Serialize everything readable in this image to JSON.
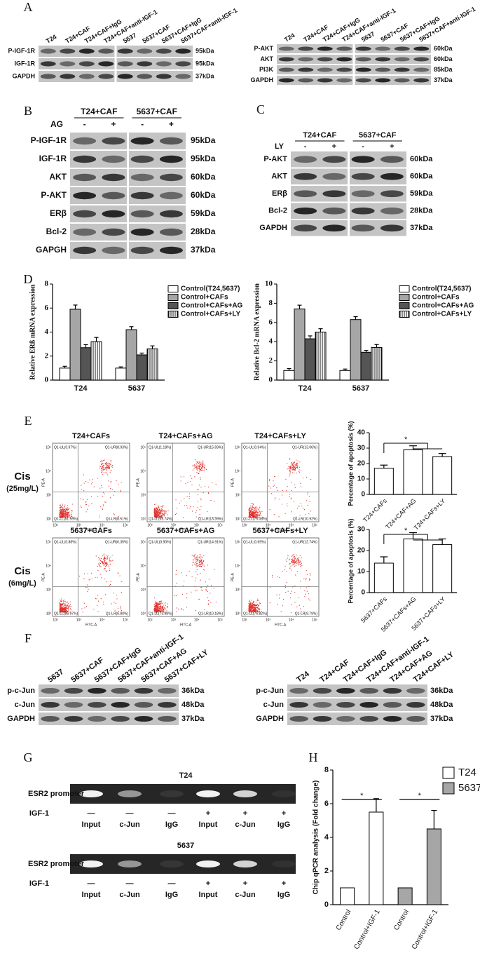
{
  "panel_labels": [
    "A",
    "B",
    "C",
    "D",
    "E",
    "F",
    "G",
    "H"
  ],
  "blots": [
    {
      "lanes": [
        "T24",
        "T24+CAF",
        "T24+CAF+IgG",
        "T24+CAF+anti-IGF-1",
        "5637",
        "5637+CAF",
        "5637+CAF+IgG",
        "5637+CAF+anti-IGF-1"
      ],
      "rows": [
        {
          "label": "P-IGF-1R",
          "kda": "95kDa"
        },
        {
          "label": "IGF-1R",
          "kda": "95kDa"
        },
        {
          "label": "GAPDH",
          "kda": "37kDa"
        }
      ]
    },
    {
      "lanes": [
        "T24",
        "T24+CAF",
        "T24+CAF+IgG",
        "T24+CAF+anti-IGF-1",
        "5637",
        "5637+CAF",
        "5637+CAF+IgG",
        "5637+CAF+anti-IGF-1"
      ],
      "rows": [
        {
          "label": "P-AKT",
          "kda": "60kDa"
        },
        {
          "label": "AKT",
          "kda": "60kDa"
        },
        {
          "label": "PI3K",
          "kda": "85kDa"
        },
        {
          "label": "GAPDH",
          "kda": "37kDa"
        }
      ]
    },
    {
      "groups": [
        "T24+CAF",
        "5637+CAF"
      ],
      "treatment": "AG",
      "signs": [
        "-",
        "+",
        "-",
        "+"
      ],
      "rows": [
        {
          "label": "P-IGF-1R",
          "kda": "95kDa"
        },
        {
          "label": "IGF-1R",
          "kda": "95kDa"
        },
        {
          "label": "AKT",
          "kda": "60kDa"
        },
        {
          "label": "P-AKT",
          "kda": "60kDa"
        },
        {
          "label": "ERβ",
          "kda": "59kDa"
        },
        {
          "label": "Bcl-2",
          "kda": "28kDa"
        },
        {
          "label": "GAPGH",
          "kda": "37kDa"
        }
      ]
    },
    {
      "groups": [
        "T24+CAF",
        "5637+CAF"
      ],
      "treatment": "LY",
      "signs": [
        "-",
        "+",
        "-",
        "+"
      ],
      "rows": [
        {
          "label": "P-AKT",
          "kda": "60kDa"
        },
        {
          "label": "AKT",
          "kda": "60kDa"
        },
        {
          "label": "ERβ",
          "kda": "59kDa"
        },
        {
          "label": "Bcl-2",
          "kda": "28kDa"
        },
        {
          "label": "GAPDH",
          "kda": "37kDa"
        }
      ]
    },
    {
      "lanes": [
        "5637",
        "5637+CAF",
        "5637+CAF+IgG",
        "5637+CAF+anti-IGF-1",
        "5637+CAF+AG",
        "5637+CAF+LY"
      ],
      "rows": [
        {
          "label": "p-c-Jun",
          "kda": "36kDa"
        },
        {
          "label": "c-Jun",
          "kda": "48kDa"
        },
        {
          "label": "GAPDH",
          "kda": "37kDa"
        }
      ]
    },
    {
      "lanes": [
        "T24",
        "T24+CAF",
        "T24+CAF+IgG",
        "T24+CAF+anti-IGF-1",
        "T24+CAF+AG",
        "T24+CAF+LY"
      ],
      "rows": [
        {
          "label": "p-c-Jun",
          "kda": "36kDa"
        },
        {
          "label": "c-Jun",
          "kda": "48kDa"
        },
        {
          "label": "GAPDH",
          "kda": "37kDa"
        }
      ]
    }
  ],
  "flow": {
    "x_label": "FITC-A",
    "y_label": "PE-A",
    "ticks": [
      "10²",
      "10³",
      "10⁴",
      "10⁵"
    ],
    "rows": [
      {
        "condition": "Cis",
        "dose": "(25mg/L)",
        "plots": [
          {
            "title": "T24+CAFs",
            "quadrants": [
              "Q1-UL(0.97%)",
              "Q1-UR(8.93%)",
              "Q1-LL(81.59%)",
              "Q1-LR(8.51%)"
            ]
          },
          {
            "title": "T24+CAFs+AG",
            "quadrants": [
              "Q1-UL(1.18%)",
              "Q1-UR(15.69%)",
              "Q1-LL(69.74%)",
              "Q1-LR(13.39%)"
            ]
          },
          {
            "title": "T24+CAFs+LY",
            "quadrants": [
              "Q1-UL(0.94%)",
              "Q1-UR(13.06%)",
              "Q1-LL(75.08%)",
              "Q1-LR(10.92%)"
            ]
          }
        ]
      },
      {
        "condition": "Cis",
        "dose": "(6mg/L)",
        "plots": [
          {
            "title": "5637+CAFs",
            "quadrants": [
              "Q1-UL(0.88%)",
              "Q1-UR(6.35%)",
              "Q1-LL(85.97%)",
              "Q1-LR(6.80%)"
            ]
          },
          {
            "title": "5637+CAFs+AG",
            "quadrants": [
              "Q1-UL(0.90%)",
              "Q1-UR(14.91%)",
              "Q1-LL(73.98%)",
              "Q1-LR(10.18%)"
            ]
          },
          {
            "title": "5637+CAFs+LY",
            "quadrants": [
              "Q1-UL(0.65%)",
              "Q1-UR(12.74%)",
              "Q1-LL(76.82%)",
              "Q1-LR(9.79%)"
            ]
          }
        ]
      }
    ]
  },
  "gels": [
    {
      "title": "T24",
      "target": "ESR2 promoter",
      "treatment": "IGF-1",
      "signs": [
        "—",
        "—",
        "—",
        "+",
        "+",
        "+"
      ],
      "lanes": [
        "Input",
        "c-Jun",
        "IgG",
        "Input",
        "c-Jun",
        "IgG"
      ]
    },
    {
      "title": "5637",
      "target": "ESR2 promoter",
      "treatment": "IGF-1",
      "signs": [
        "—",
        "—",
        "—",
        "+",
        "+",
        "+"
      ],
      "lanes": [
        "Input",
        "c-Jun",
        "IgG",
        "Input",
        "c-Jun",
        "IgG"
      ]
    }
  ],
  "chart_data": [
    {
      "type": "bar",
      "ylabel": "Relative ERß  mRNA expression",
      "categories": [
        "T24",
        "5637"
      ],
      "series": [
        {
          "name": "Control(T24,5637)",
          "color": "#ffffff",
          "values": [
            1.0,
            1.0
          ],
          "errors": [
            0.15,
            0.1
          ]
        },
        {
          "name": "Control+CAFs",
          "color": "#a6a6a6",
          "values": [
            5.9,
            4.2
          ],
          "errors": [
            0.35,
            0.25
          ]
        },
        {
          "name": "Control+CAFs+AG",
          "color": "#555555",
          "values": [
            2.7,
            2.1
          ],
          "errors": [
            0.25,
            0.15
          ]
        },
        {
          "name": "Control+CAFs+LY",
          "color": "#ffffff",
          "pattern": "vertical-lines",
          "values": [
            3.2,
            2.6
          ],
          "errors": [
            0.35,
            0.25
          ]
        }
      ],
      "ylim": [
        0,
        8
      ],
      "yticks": [
        0,
        2,
        4,
        6,
        8
      ]
    },
    {
      "type": "bar",
      "ylabel": "Relative Bcl-2 mRNA expression",
      "categories": [
        "T24",
        "5637"
      ],
      "series": [
        {
          "name": "Control(T24,5637)",
          "color": "#ffffff",
          "values": [
            1.0,
            1.0
          ],
          "errors": [
            0.2,
            0.15
          ]
        },
        {
          "name": "Control+CAFs",
          "color": "#a6a6a6",
          "values": [
            7.4,
            6.3
          ],
          "errors": [
            0.4,
            0.3
          ]
        },
        {
          "name": "Control+CAFs+AG",
          "color": "#555555",
          "values": [
            4.3,
            2.9
          ],
          "errors": [
            0.3,
            0.2
          ]
        },
        {
          "name": "Control+CAFs+LY",
          "color": "#ffffff",
          "pattern": "vertical-lines",
          "values": [
            5.0,
            3.4
          ],
          "errors": [
            0.35,
            0.3
          ]
        }
      ],
      "ylim": [
        0,
        10
      ],
      "yticks": [
        0,
        2,
        4,
        6,
        8,
        10
      ]
    },
    {
      "type": "bar",
      "ylabel": "Percentage of apoptosis (%)",
      "categories": [
        "T24+CAFs",
        "T24+CAF+AG",
        "T24+CAFs+LY"
      ],
      "series": [
        {
          "color": "#ffffff",
          "values": [
            17,
            29,
            24.5
          ],
          "errors": [
            2,
            2.5,
            2
          ]
        }
      ],
      "ylim": [
        0,
        40
      ],
      "yticks": [
        0,
        10,
        20,
        30,
        40
      ],
      "significance": "*"
    },
    {
      "type": "bar",
      "ylabel": "Percentage of apoptosis (%)",
      "categories": [
        "5637+CAFs",
        "5637+CAFs+AG",
        "5637+CAFs+LY"
      ],
      "series": [
        {
          "color": "#ffffff",
          "values": [
            14,
            25.5,
            22.8
          ],
          "errors": [
            3,
            3,
            2.7
          ]
        }
      ],
      "ylim": [
        0,
        30
      ],
      "yticks": [
        0,
        10,
        20,
        30
      ],
      "significance": "*"
    },
    {
      "type": "bar",
      "ylabel": "Chip qPCR analysis (Fold change)",
      "categories": [
        "Control",
        "Control+IGF-1",
        "Control",
        "Control+IGF-1"
      ],
      "series": [
        {
          "name": "T24",
          "color": "#ffffff",
          "values": [
            1,
            5.5,
            null,
            null
          ],
          "errors": [
            null,
            0.8,
            null,
            null
          ]
        },
        {
          "name": "5637",
          "color": "#a6a6a6",
          "values": [
            null,
            null,
            1,
            4.5
          ],
          "errors": [
            null,
            null,
            null,
            1.1
          ]
        }
      ],
      "ylim": [
        0,
        8
      ],
      "yticks": [
        0,
        2,
        4,
        6,
        8
      ],
      "significance": "*"
    }
  ]
}
